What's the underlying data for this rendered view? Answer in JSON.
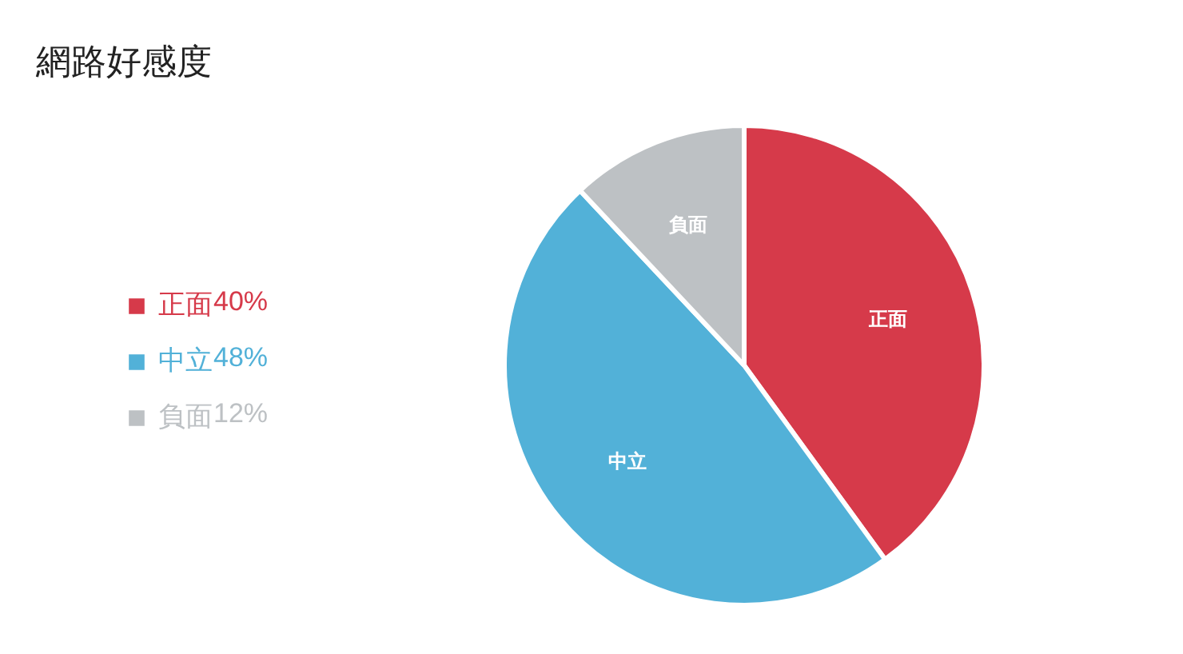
{
  "chart_data": {
    "type": "pie",
    "title": "網路好感度",
    "categories": [
      "正面",
      "中立",
      "負面"
    ],
    "values": [
      40,
      48,
      12
    ],
    "value_labels": [
      "40%",
      "48%",
      "12%"
    ],
    "colors": [
      "#d63a4a",
      "#52b1d8",
      "#bdc1c4"
    ],
    "legend": "left"
  }
}
